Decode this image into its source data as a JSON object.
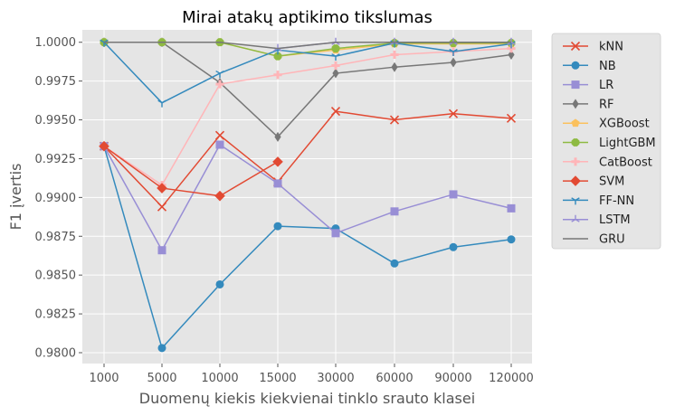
{
  "chart_data": {
    "type": "line",
    "title": "Mirai atakų aptikimo tikslumas",
    "xlabel": "Duomenų kiekis kiekvienai tinklo srauto klasei",
    "ylabel": "F1 įvertis",
    "categories": [
      "1000",
      "5000",
      "10000",
      "15000",
      "30000",
      "60000",
      "90000",
      "120000"
    ],
    "ylim": [
      0.9793,
      1.0008
    ],
    "yticks": [
      0.98,
      0.9825,
      0.985,
      0.9875,
      0.99,
      0.9925,
      0.995,
      0.9975,
      1.0
    ],
    "ytick_labels": [
      "0.9800",
      "0.9825",
      "0.9850",
      "0.9875",
      "0.9900",
      "0.9925",
      "0.9950",
      "0.9975",
      "1.0000"
    ],
    "grid": true,
    "legend_placement": "outside-right",
    "series": [
      {
        "name": "kNN",
        "color": "#E24A33",
        "marker": "x",
        "values": [
          0.9933,
          0.9894,
          0.994,
          0.991,
          0.99555,
          0.995,
          0.9954,
          0.9951
        ]
      },
      {
        "name": "NB",
        "color": "#348ABD",
        "marker": "circle",
        "values": [
          0.9933,
          0.9803,
          0.9844,
          0.98815,
          0.988,
          0.98575,
          0.9868,
          0.9873
        ]
      },
      {
        "name": "LR",
        "color": "#988ED5",
        "marker": "square",
        "values": [
          0.9933,
          0.9866,
          0.9934,
          0.9909,
          0.9877,
          0.9891,
          0.9902,
          0.9893
        ]
      },
      {
        "name": "RF",
        "color": "#777777",
        "marker": "thin-diamond",
        "values": [
          1.0,
          1.0,
          0.9974,
          0.9939,
          0.998,
          0.9984,
          0.9987,
          0.9992
        ]
      },
      {
        "name": "XGBoost",
        "color": "#FBC15E",
        "marker": "pentagon",
        "values": [
          1.0,
          1.0,
          1.0,
          0.9991,
          0.9995,
          0.9999,
          0.9999,
          0.9999
        ]
      },
      {
        "name": "LightGBM",
        "color": "#8EBA42",
        "marker": "octagon",
        "values": [
          1.0,
          1.0,
          1.0,
          0.9991,
          0.9996,
          0.99995,
          0.99995,
          0.99995
        ]
      },
      {
        "name": "CatBoost",
        "color": "#FFB5B8",
        "marker": "plus-filled",
        "values": [
          0.9933,
          0.9908,
          0.9973,
          0.9979,
          0.9985,
          0.9992,
          0.9994,
          0.9996
        ]
      },
      {
        "name": "SVM",
        "color": "#E24A33",
        "marker": "diamond",
        "values": [
          0.9933,
          0.9906,
          0.9901,
          0.9923,
          null,
          null,
          null,
          null
        ]
      },
      {
        "name": "FF-NN",
        "color": "#348ABD",
        "marker": "tri-down",
        "values": [
          1.0,
          0.9961,
          0.998,
          0.9995,
          0.9991,
          0.99995,
          0.9994,
          0.9999
        ]
      },
      {
        "name": "LSTM",
        "color": "#988ED5",
        "marker": "tri-up",
        "values": [
          null,
          null,
          null,
          0.9996,
          1.0,
          1.0,
          1.0,
          1.0
        ]
      },
      {
        "name": "GRU",
        "color": "#777777",
        "marker": "none",
        "values": [
          1.0,
          1.0,
          1.0,
          0.9996,
          1.0,
          1.0,
          1.0,
          1.0
        ]
      }
    ]
  }
}
